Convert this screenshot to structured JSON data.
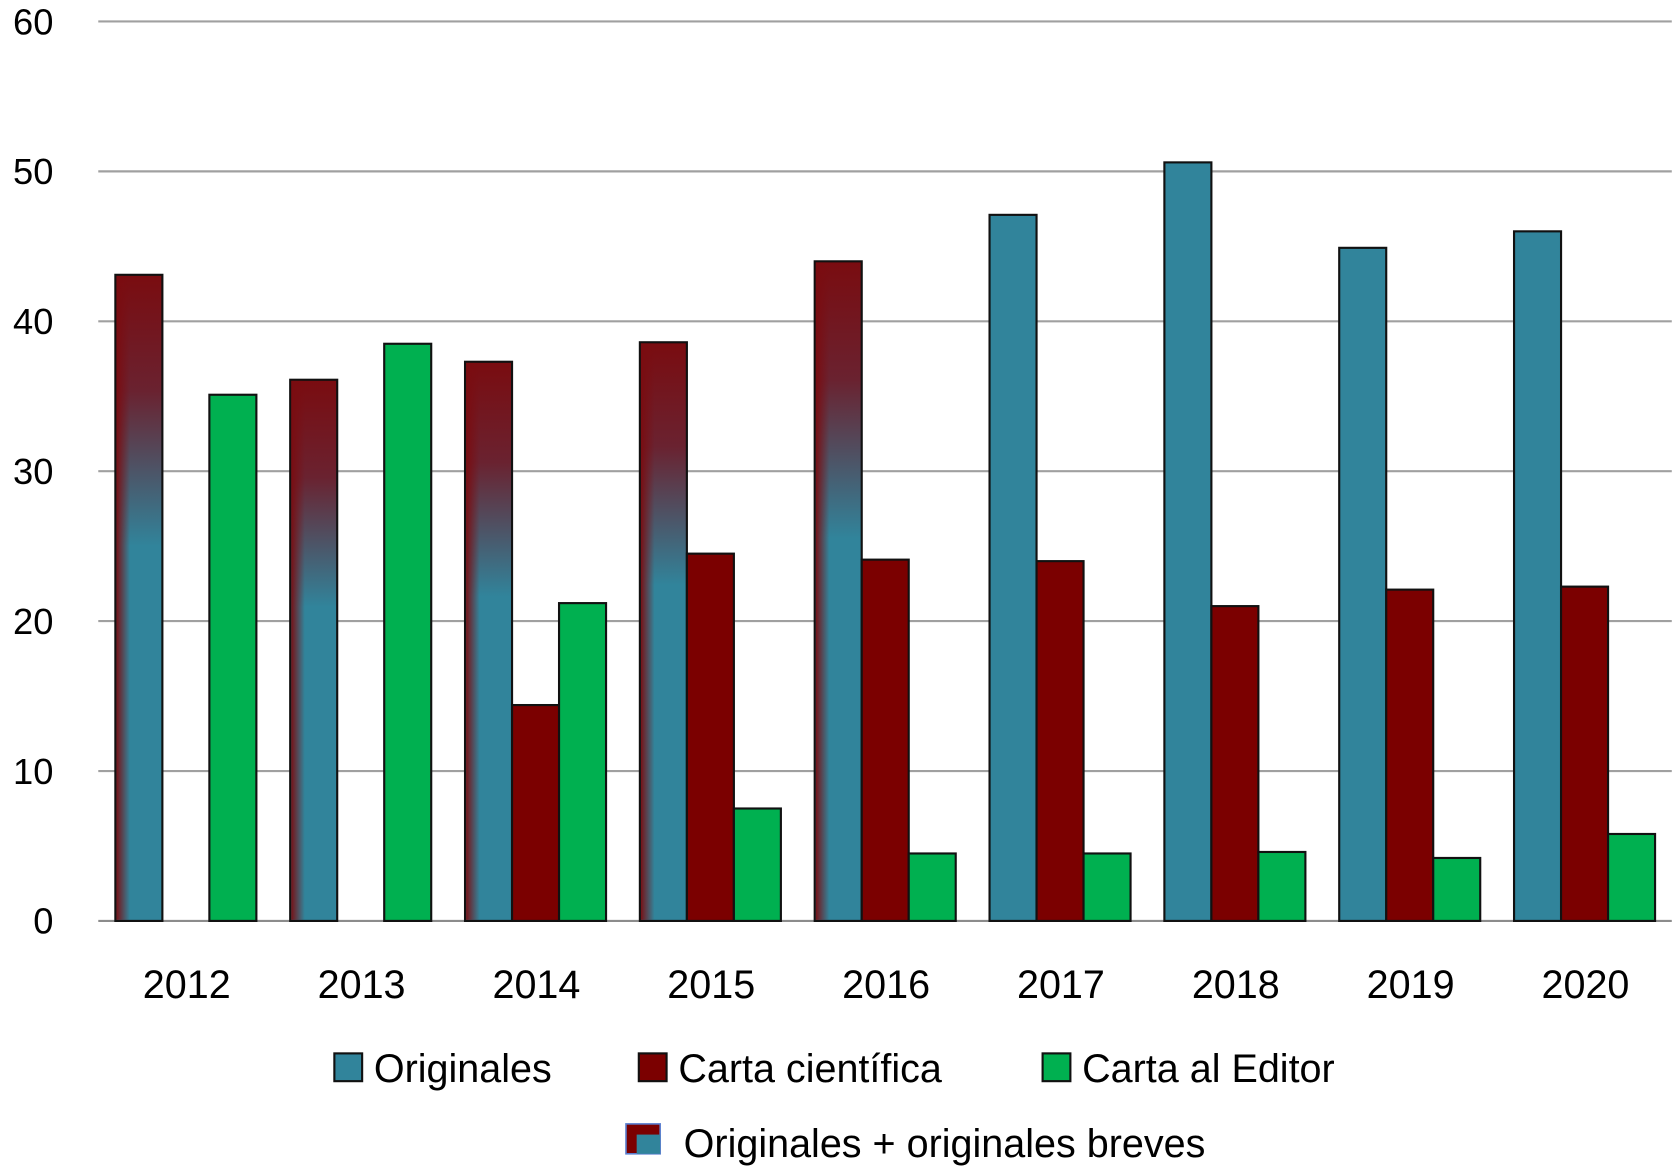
{
  "chart_data": {
    "type": "bar",
    "title": "",
    "xlabel": "",
    "ylabel": "",
    "ylim": [
      0,
      60
    ],
    "yticks": [
      "0",
      "10",
      "20",
      "30",
      "40",
      "50",
      "60"
    ],
    "grid": true,
    "legend_position": "bottom",
    "categories": [
      "2012",
      "2013",
      "2014",
      "2015",
      "2016",
      "2017",
      "2018",
      "2019",
      "2020"
    ],
    "series": [
      {
        "name": "Originales",
        "color": "#31849b",
        "values": [
          null,
          null,
          null,
          null,
          null,
          47.1,
          50.6,
          44.9,
          46.0
        ]
      },
      {
        "name": "Carta científica",
        "color": "#7b0000",
        "values": [
          null,
          null,
          14.4,
          24.5,
          24.1,
          24.0,
          21.0,
          22.1,
          22.3
        ]
      },
      {
        "name": "Carta al Editor",
        "color": "#00b050",
        "values": [
          35.1,
          38.5,
          21.2,
          7.5,
          4.5,
          4.5,
          4.6,
          4.2,
          5.8
        ]
      },
      {
        "name": "Originales + originales breves",
        "color": "gradient",
        "values": [
          43.1,
          36.1,
          37.3,
          38.6,
          44.0,
          null,
          null,
          null,
          null
        ]
      }
    ]
  }
}
